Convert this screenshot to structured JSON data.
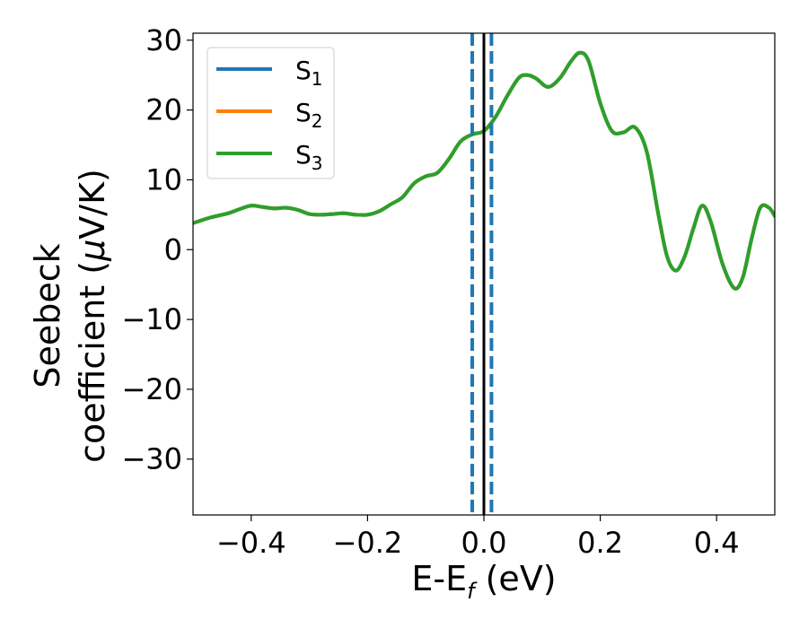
{
  "chart_data": {
    "type": "line",
    "title": "",
    "xlabel_main": "E-E",
    "xlabel_sub": "f",
    "xlabel_tail": " (eV)",
    "ylabel_line1": "Seebeck",
    "ylabel_line2_pre": "coefficient  (",
    "ylabel_line2_mu": "μ",
    "ylabel_line2_post": "V/K)",
    "xlim": [
      -0.5,
      0.5
    ],
    "ylim": [
      -38,
      31
    ],
    "xticks": [
      -0.4,
      -0.2,
      0.0,
      0.2,
      0.4
    ],
    "xtick_labels": [
      "−0.4",
      "−0.2",
      "0.0",
      "0.2",
      "0.4"
    ],
    "yticks": [
      -30,
      -20,
      -10,
      0,
      10,
      20,
      30
    ],
    "ytick_labels": [
      "−30",
      "−20",
      "−10",
      "0",
      "10",
      "20",
      "30"
    ],
    "grid": false,
    "legend_position": "top-left",
    "series": [
      {
        "name": "S",
        "sub": "1",
        "color": "#1f77b4",
        "x": [
          -0.5,
          -0.47,
          -0.44,
          -0.42,
          -0.4,
          -0.38,
          -0.36,
          -0.34,
          -0.32,
          -0.3,
          -0.28,
          -0.26,
          -0.24,
          -0.22,
          -0.2,
          -0.18,
          -0.16,
          -0.14,
          -0.12,
          -0.1,
          -0.08,
          -0.06,
          -0.04,
          -0.02,
          0.0,
          0.02,
          0.04,
          0.06,
          0.075,
          0.09,
          0.11,
          0.13,
          0.15,
          0.165,
          0.18,
          0.2,
          0.22,
          0.24,
          0.26,
          0.28,
          0.3,
          0.315,
          0.33,
          0.345,
          0.36,
          0.375,
          0.39,
          0.41,
          0.43,
          0.445,
          0.46,
          0.475,
          0.49,
          0.5
        ],
        "y": [
          3.8,
          4.6,
          5.2,
          5.8,
          6.3,
          6.1,
          5.9,
          6.0,
          5.7,
          5.1,
          5.0,
          5.1,
          5.2,
          5.0,
          5.0,
          5.5,
          6.5,
          7.5,
          9.5,
          10.5,
          11.0,
          13.0,
          15.5,
          16.5,
          17.0,
          19.0,
          22.0,
          24.6,
          25.0,
          24.5,
          23.3,
          24.5,
          27.0,
          28.2,
          27.0,
          21.0,
          17.0,
          16.8,
          17.5,
          14.0,
          5.0,
          -1.0,
          -3.0,
          -1.0,
          3.0,
          6.3,
          4.0,
          -2.0,
          -5.5,
          -4.0,
          1.5,
          6.0,
          6.0,
          4.8
        ]
      },
      {
        "name": "S",
        "sub": "2",
        "color": "#ff7f0e",
        "x": [
          -0.5,
          -0.47,
          -0.44,
          -0.42,
          -0.4,
          -0.38,
          -0.36,
          -0.34,
          -0.32,
          -0.3,
          -0.28,
          -0.26,
          -0.24,
          -0.22,
          -0.2,
          -0.18,
          -0.16,
          -0.14,
          -0.12,
          -0.1,
          -0.08,
          -0.06,
          -0.04,
          -0.02,
          0.0,
          0.02,
          0.04,
          0.06,
          0.075,
          0.09,
          0.11,
          0.13,
          0.15,
          0.165,
          0.18,
          0.2,
          0.22,
          0.24,
          0.26,
          0.28,
          0.3,
          0.315,
          0.33,
          0.345,
          0.36,
          0.375,
          0.39,
          0.41,
          0.43,
          0.445,
          0.46,
          0.475,
          0.49,
          0.5
        ],
        "y": [
          3.8,
          4.6,
          5.2,
          5.8,
          6.3,
          6.1,
          5.9,
          6.0,
          5.7,
          5.1,
          5.0,
          5.1,
          5.2,
          5.0,
          5.0,
          5.5,
          6.5,
          7.5,
          9.5,
          10.5,
          11.0,
          13.0,
          15.5,
          16.5,
          17.0,
          19.0,
          22.0,
          24.6,
          25.0,
          24.5,
          23.3,
          24.5,
          27.0,
          28.2,
          27.0,
          21.0,
          17.0,
          16.8,
          17.5,
          14.0,
          5.0,
          -1.0,
          -3.0,
          -1.0,
          3.0,
          6.3,
          4.0,
          -2.0,
          -5.5,
          -4.0,
          1.5,
          6.0,
          6.0,
          4.8
        ]
      },
      {
        "name": "S",
        "sub": "3",
        "color": "#2ca02c",
        "x": [
          -0.5,
          -0.47,
          -0.44,
          -0.42,
          -0.4,
          -0.38,
          -0.36,
          -0.34,
          -0.32,
          -0.3,
          -0.28,
          -0.26,
          -0.24,
          -0.22,
          -0.2,
          -0.18,
          -0.16,
          -0.14,
          -0.12,
          -0.1,
          -0.08,
          -0.06,
          -0.04,
          -0.02,
          0.0,
          0.02,
          0.04,
          0.06,
          0.075,
          0.09,
          0.11,
          0.13,
          0.15,
          0.165,
          0.18,
          0.2,
          0.22,
          0.24,
          0.26,
          0.28,
          0.3,
          0.315,
          0.33,
          0.345,
          0.36,
          0.375,
          0.39,
          0.41,
          0.43,
          0.445,
          0.46,
          0.475,
          0.49,
          0.5
        ],
        "y": [
          3.8,
          4.6,
          5.2,
          5.8,
          6.3,
          6.1,
          5.9,
          6.0,
          5.7,
          5.1,
          5.0,
          5.1,
          5.2,
          5.0,
          5.0,
          5.5,
          6.5,
          7.5,
          9.5,
          10.5,
          11.0,
          13.0,
          15.5,
          16.5,
          17.0,
          19.0,
          22.0,
          24.6,
          25.0,
          24.5,
          23.3,
          24.5,
          27.0,
          28.2,
          27.0,
          21.0,
          17.0,
          16.8,
          17.5,
          14.0,
          5.0,
          -1.0,
          -3.0,
          -1.0,
          3.0,
          6.3,
          4.0,
          -2.0,
          -5.5,
          -4.0,
          1.5,
          6.0,
          6.0,
          4.8
        ]
      }
    ],
    "vlines": [
      {
        "x": 0.0,
        "color": "#000000",
        "style": "solid"
      },
      {
        "x": -0.02,
        "color": "#1f77b4",
        "style": "dashed"
      },
      {
        "x": 0.013,
        "color": "#1f77b4",
        "style": "dashed"
      }
    ]
  }
}
